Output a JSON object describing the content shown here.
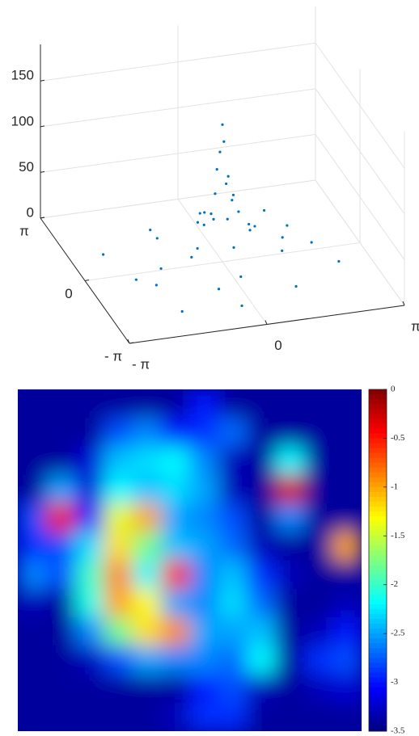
{
  "chart_data": [
    {
      "type": "scatter3d",
      "xlim": [
        -3.14159,
        3.14159
      ],
      "xticks": [
        {
          "value": -3.14159,
          "label": "- π"
        },
        0,
        {
          "value": 3.14159,
          "label": "π"
        }
      ],
      "ylim": [
        -3.14159,
        3.14159
      ],
      "yticks": [
        {
          "value": -3.14159,
          "label": "- π"
        },
        0,
        {
          "value": 3.14159,
          "label": "π"
        }
      ],
      "zlim": [
        0,
        190
      ],
      "zticks": [
        0,
        50,
        100,
        150
      ],
      "grid": true,
      "color": "#0072bd",
      "x": [
        0,
        0.05,
        -0.05,
        0.1,
        -0.1,
        0.15,
        0.2,
        -0.2,
        0.3,
        -0.3,
        0.4,
        -0.4,
        0.5,
        -0.5,
        0.7,
        -0.7,
        0,
        0,
        0.9,
        -0.9,
        1.2,
        -1.2,
        0,
        0,
        1.5,
        -1.5,
        1.8,
        -1.8,
        0.6,
        -0.6,
        1.1,
        -1.1,
        2.1,
        -2.1,
        0.3,
        -0.3,
        2.4,
        -2.4,
        1.6,
        -1.6
      ],
      "y": [
        0,
        0.05,
        0.02,
        -0.1,
        0.08,
        0.2,
        -0.15,
        -0.1,
        0.25,
        -0.3,
        0.1,
        0.35,
        -0.4,
        0.2,
        0.3,
        -0.4,
        0.8,
        -0.8,
        0.5,
        -0.6,
        -0.5,
        0.9,
        1.3,
        -1.3,
        0.4,
        -0.3,
        1.0,
        -0.9,
        1.5,
        -1.6,
        -1.8,
        1.7,
        0.2,
        -0.4,
        2.2,
        -2.3,
        -0.8,
        1.0,
        2.0,
        -2.1
      ],
      "z": [
        150,
        130,
        120,
        95,
        100,
        80,
        75,
        78,
        60,
        55,
        50,
        48,
        40,
        42,
        30,
        28,
        35,
        33,
        22,
        24,
        15,
        14,
        12,
        12,
        8,
        9,
        6,
        6,
        10,
        9,
        5,
        5,
        3,
        3,
        4,
        4,
        2,
        2,
        2,
        2
      ]
    },
    {
      "type": "heatmap",
      "colormap": "jet",
      "clim": [
        -3.5,
        0
      ],
      "cticks": [
        0,
        -0.5,
        -1,
        -1.5,
        -2,
        -2.5,
        -3,
        -3.5
      ],
      "values": [
        [
          -3.4,
          -3.4,
          -3.4,
          -3.4,
          -3.4,
          -3.4,
          -3.0,
          -3.4,
          -3.4,
          -3.4,
          -3.4,
          -3.4
        ],
        [
          -3.4,
          -3.4,
          -3.4,
          -2.8,
          -2.6,
          -3.0,
          -2.9,
          -2.7,
          -3.4,
          -3.4,
          -3.4,
          -3.4
        ],
        [
          -3.4,
          -3.4,
          -3.2,
          -2.4,
          -2.3,
          -2.2,
          -2.6,
          -3.3,
          -3.4,
          -2.2,
          -3.4,
          -3.4
        ],
        [
          -3.4,
          -2.5,
          -3.2,
          -2.2,
          -2.4,
          -2.3,
          -2.5,
          -3.3,
          -3.4,
          -0.3,
          -3.4,
          -3.4
        ],
        [
          -2.8,
          -0.4,
          -3.0,
          -1.4,
          -1.0,
          -2.5,
          -2.6,
          -2.8,
          -3.4,
          -2.6,
          -3.4,
          -3.4
        ],
        [
          -2.9,
          -2.8,
          -2.3,
          -1.2,
          -1.8,
          -2.4,
          -2.5,
          -2.7,
          -3.3,
          -3.4,
          -3.4,
          -1.0
        ],
        [
          -2.6,
          -2.8,
          -2.0,
          -0.9,
          -2.2,
          -0.5,
          -2.6,
          -2.4,
          -2.9,
          -3.3,
          -3.4,
          -3.4
        ],
        [
          -3.3,
          -3.4,
          -2.1,
          -1.0,
          -1.3,
          -2.5,
          -2.6,
          -2.3,
          -2.7,
          -3.4,
          -3.4,
          -3.3
        ],
        [
          -3.4,
          -3.4,
          -2.6,
          -1.8,
          -1.2,
          -0.9,
          -2.5,
          -2.5,
          -2.4,
          -3.4,
          -3.3,
          -3.0
        ],
        [
          -3.4,
          -3.4,
          -3.3,
          -2.8,
          -2.5,
          -2.6,
          -2.6,
          -2.7,
          -2.2,
          -3.4,
          -2.9,
          -2.8
        ],
        [
          -3.4,
          -3.4,
          -3.4,
          -3.4,
          -3.4,
          -3.4,
          -3.0,
          -2.8,
          -3.3,
          -3.4,
          -3.3,
          -3.2
        ],
        [
          -3.4,
          -3.4,
          -3.4,
          -3.4,
          -3.4,
          -3.3,
          -2.9,
          -2.9,
          -3.4,
          -3.4,
          -3.4,
          -3.4
        ]
      ]
    }
  ]
}
